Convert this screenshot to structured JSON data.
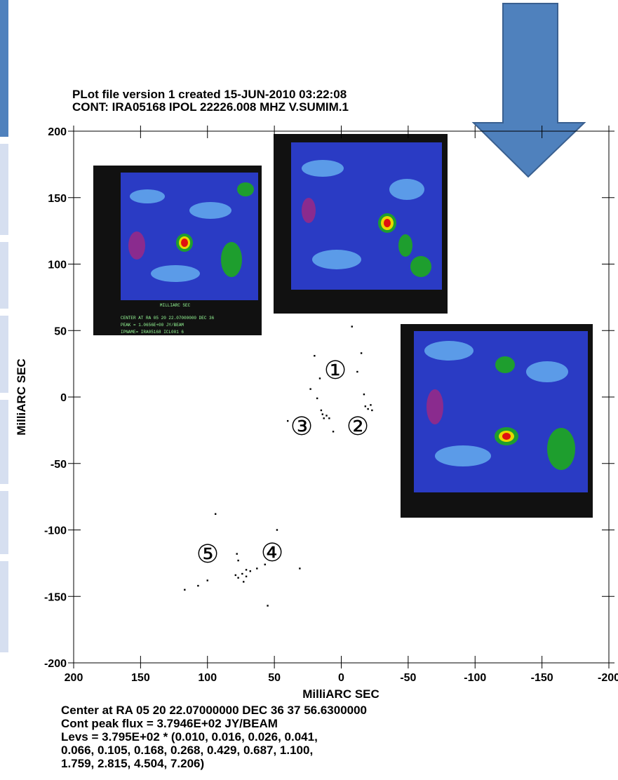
{
  "chart_data": {
    "type": "scatter",
    "title": [
      "PLot file version 1  created 15-JUN-2010 03:22:08",
      "CONT: IRA05168  IPOL  22226.008 MHZ  V.SUMIM.1"
    ],
    "xlabel": "MilliARC SEC",
    "ylabel": "MilliARC SEC",
    "xlim": [
      200,
      -200
    ],
    "ylim": [
      -200,
      200
    ],
    "xticks": [
      200,
      150,
      100,
      50,
      0,
      -50,
      -100,
      -150,
      -200
    ],
    "yticks": [
      200,
      150,
      100,
      50,
      0,
      -50,
      -100,
      -150,
      -200
    ],
    "series": [
      {
        "color": "#000000",
        "x": [
          20,
          16,
          23,
          18,
          15,
          14,
          11,
          9,
          13,
          6,
          40,
          -8,
          -15,
          -12,
          -17,
          -18,
          -20,
          -23,
          -22,
          94,
          78,
          77,
          79,
          77,
          74,
          71,
          71,
          73,
          68,
          63,
          57,
          48,
          31,
          100,
          107,
          117,
          55
        ],
        "values": [
          31,
          14,
          6,
          -1,
          -10,
          -13,
          -14,
          -16,
          -16,
          -26,
          -18,
          53,
          33,
          19,
          2,
          -7,
          -9,
          -10,
          -6,
          -88,
          -118,
          -123,
          -134,
          -136,
          -133,
          -135,
          -130,
          -139,
          -131,
          -129,
          -126,
          -100,
          -129,
          -138,
          -142,
          -145,
          -157
        ]
      }
    ],
    "annotations": [
      "①",
      "②",
      "③",
      "④",
      "⑤"
    ],
    "inset_text": [
      "MILLIARC SEC",
      "CENTER AT RA 05 20 22.07000000  DEC 36",
      "PEAK = 1.0656E+00 JY/BEAM",
      "IPNAME= IRA05168 ICL001 6"
    ],
    "footer": [
      "Center at RA 05 20 22.07000000  DEC 36 37 56.6300000",
      "Cont peak flux =  3.7946E+02 JY/BEAM",
      "Levs = 3.795E+02 * (0.010, 0.016, 0.026, 0.041,",
      "0.066, 0.105, 0.168, 0.268, 0.429, 0.687, 1.100,",
      "1.759, 2.815, 4.504, 7.206)"
    ]
  }
}
